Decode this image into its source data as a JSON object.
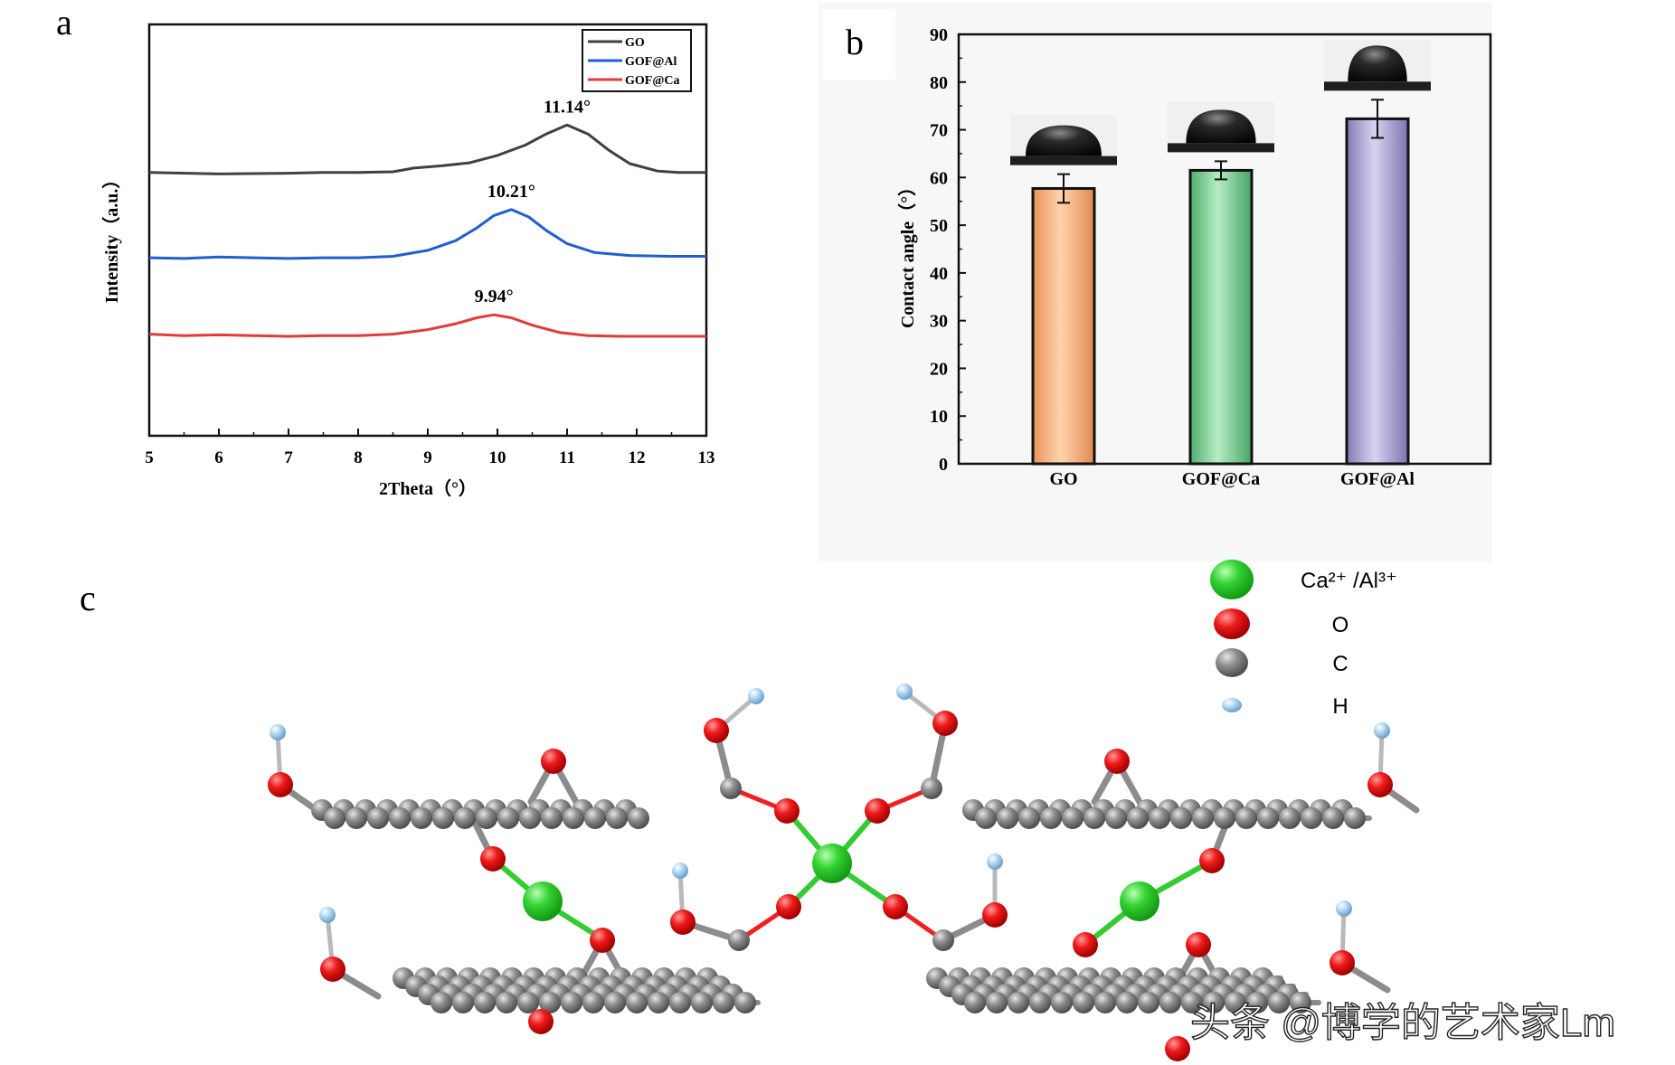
{
  "panels": {
    "a": "a",
    "b": "b",
    "c": "c"
  },
  "chart_data": [
    {
      "type": "line",
      "panel": "a",
      "xlabel": "2Theta（°）",
      "ylabel": "Intensity（a.u.）",
      "xlim": [
        5,
        13
      ],
      "xticks": [
        "5",
        "6",
        "7",
        "8",
        "9",
        "10",
        "11",
        "12",
        "13"
      ],
      "legend_position": "top-right",
      "series": [
        {
          "name": "GO",
          "color": "#404040",
          "offset": 2.0,
          "x": [
            5,
            6,
            7,
            7.5,
            8,
            8.5,
            8.8,
            9.2,
            9.6,
            10.0,
            10.4,
            10.7,
            11.0,
            11.3,
            11.6,
            11.9,
            12.3,
            12.6,
            13
          ],
          "y": [
            1.1,
            1.08,
            1.09,
            1.1,
            1.1,
            1.11,
            1.16,
            1.19,
            1.23,
            1.33,
            1.47,
            1.62,
            1.74,
            1.62,
            1.4,
            1.22,
            1.12,
            1.1,
            1.1
          ],
          "peak_label": "11.14°"
        },
        {
          "name": "GOF@Al",
          "color": "#1f5fd1",
          "offset": 1.0,
          "x": [
            5,
            5.5,
            6,
            6.5,
            7,
            7.5,
            8,
            8.5,
            9.0,
            9.4,
            9.7,
            9.95,
            10.2,
            10.45,
            10.7,
            11.0,
            11.4,
            11.9,
            12.5,
            13
          ],
          "y": [
            0.95,
            0.94,
            0.96,
            0.95,
            0.94,
            0.95,
            0.95,
            0.97,
            1.05,
            1.18,
            1.35,
            1.52,
            1.6,
            1.5,
            1.32,
            1.14,
            1.02,
            0.98,
            0.97,
            0.97
          ],
          "peak_label": "10.21°"
        },
        {
          "name": "GOF@Ca",
          "color": "#e23b3b",
          "offset": 0.0,
          "x": [
            5,
            5.5,
            6,
            6.5,
            7,
            7.5,
            8,
            8.5,
            9.0,
            9.4,
            9.7,
            9.95,
            10.2,
            10.5,
            10.9,
            11.3,
            11.8,
            12.3,
            12.8,
            13
          ],
          "y": [
            0.92,
            0.9,
            0.91,
            0.9,
            0.89,
            0.9,
            0.9,
            0.92,
            0.98,
            1.06,
            1.14,
            1.18,
            1.14,
            1.04,
            0.94,
            0.9,
            0.89,
            0.89,
            0.89,
            0.89
          ],
          "peak_label": "9.94°"
        }
      ]
    },
    {
      "type": "bar",
      "panel": "b",
      "ylabel": "Contact angle（°）",
      "ylim": [
        0,
        90
      ],
      "yticks": [
        "0",
        "10",
        "20",
        "30",
        "40",
        "50",
        "60",
        "70",
        "80",
        "90"
      ],
      "categories": [
        "GO",
        "GOF@Ca",
        "GOF@Al"
      ],
      "values": [
        57.7,
        61.5,
        72.3
      ],
      "errors": [
        3.0,
        1.9,
        4.0
      ],
      "colors": [
        "#f0a66e",
        "#71c48b",
        "#a59ccc"
      ]
    }
  ],
  "structure": {
    "legend": [
      {
        "label": "Ca²⁺ /Al³⁺",
        "color": "#2fcf2f"
      },
      {
        "label": "O",
        "color": "#ee1111"
      },
      {
        "label": "C",
        "color": "#8a8a8a"
      },
      {
        "label": "H",
        "color": "#a8cfee"
      }
    ]
  },
  "watermark": "头条 @博学的艺术家Lm"
}
